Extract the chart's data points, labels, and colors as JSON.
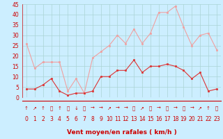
{
  "hours": [
    0,
    1,
    2,
    3,
    4,
    5,
    6,
    7,
    8,
    9,
    10,
    11,
    12,
    13,
    14,
    15,
    16,
    17,
    18,
    19,
    20,
    21,
    22,
    23
  ],
  "wind_avg": [
    4,
    4,
    6,
    9,
    3,
    1,
    2,
    2,
    3,
    10,
    10,
    13,
    13,
    18,
    12,
    15,
    15,
    16,
    15,
    13,
    9,
    12,
    3,
    4
  ],
  "wind_gust": [
    26,
    14,
    17,
    17,
    17,
    3,
    9,
    2,
    19,
    22,
    25,
    30,
    26,
    33,
    26,
    31,
    41,
    41,
    44,
    34,
    25,
    30,
    31,
    23
  ],
  "wind_dirs": [
    "↑",
    "↗",
    "↑",
    "⮢",
    "↑",
    "⮠",
    "↓",
    "⮣",
    "→",
    "→",
    "↗",
    "→",
    "→",
    "⮣",
    "↗",
    "⮢",
    "→",
    "⮣",
    "→",
    "⮣",
    "→",
    "↗",
    "↑",
    "⮡"
  ],
  "avg_color": "#dd3333",
  "gust_color": "#f0a0a0",
  "bg_color": "#cceeff",
  "grid_color": "#aad4d4",
  "xlabel": "Vent moyen/en rafales ( km/h )",
  "xlabel_color": "#cc0000",
  "tick_color": "#cc0000",
  "arrow_color": "#cc0000",
  "sep_line_color": "#cc0000",
  "ylim": [
    0,
    45
  ],
  "yticks": [
    0,
    5,
    10,
    15,
    20,
    25,
    30,
    35,
    40,
    45
  ],
  "tick_fontsize": 5.5,
  "xlabel_fontsize": 6.5
}
